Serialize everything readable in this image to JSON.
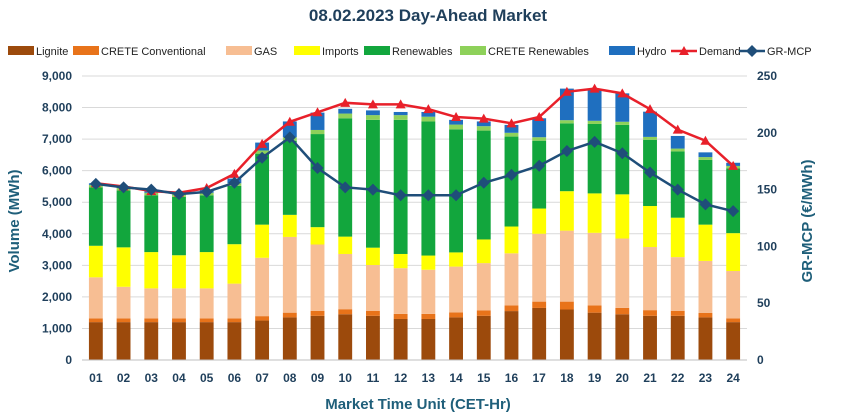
{
  "chart_data": {
    "type": "bar",
    "title": "08.02.2023  Day-Ahead Market",
    "xlabel": "Market Time Unit (CET-Hr)",
    "ylabel": "Volume (MWh)",
    "y2label": "GR-MCP (€/MWh)",
    "ylim": [
      0,
      9000
    ],
    "y2lim": [
      0,
      250
    ],
    "yticks": [
      "0",
      "1,000",
      "2,000",
      "3,000",
      "4,000",
      "5,000",
      "6,000",
      "7,000",
      "8,000",
      "9,000"
    ],
    "y2ticks": [
      "0",
      "50",
      "100",
      "150",
      "200",
      "250"
    ],
    "categories": [
      "01",
      "02",
      "03",
      "04",
      "05",
      "06",
      "07",
      "08",
      "09",
      "10",
      "11",
      "12",
      "13",
      "14",
      "15",
      "16",
      "17",
      "18",
      "19",
      "20",
      "21",
      "22",
      "23",
      "24"
    ],
    "series": [
      {
        "name": "Lignite",
        "kind": "bar",
        "color": "#9c4a0c",
        "values": [
          1200,
          1200,
          1200,
          1200,
          1200,
          1200,
          1250,
          1350,
          1400,
          1450,
          1400,
          1300,
          1300,
          1350,
          1400,
          1550,
          1650,
          1600,
          1500,
          1450,
          1400,
          1400,
          1350,
          1200
        ]
      },
      {
        "name": "CRETE Conventional",
        "kind": "bar",
        "color": "#e8731a",
        "values": [
          120,
          120,
          120,
          120,
          120,
          120,
          140,
          150,
          160,
          160,
          160,
          160,
          160,
          160,
          170,
          180,
          200,
          250,
          230,
          200,
          180,
          160,
          140,
          120
        ]
      },
      {
        "name": "GAS",
        "kind": "bar",
        "color": "#f7be93",
        "values": [
          1300,
          1000,
          950,
          950,
          950,
          1100,
          1850,
          2400,
          2100,
          1750,
          1450,
          1450,
          1400,
          1450,
          1500,
          1650,
          2150,
          2250,
          2300,
          2200,
          2000,
          1700,
          1650,
          1500
        ]
      },
      {
        "name": "Imports",
        "kind": "bar",
        "color": "#ffff00",
        "values": [
          1000,
          1250,
          1150,
          1050,
          1150,
          1250,
          1050,
          700,
          550,
          550,
          550,
          450,
          450,
          450,
          750,
          850,
          800,
          1250,
          1250,
          1400,
          1300,
          1250,
          1150,
          1200
        ]
      },
      {
        "name": "Renewables",
        "kind": "bar",
        "color": "#12a63d",
        "values": [
          1850,
          1800,
          1800,
          1850,
          1800,
          1850,
          2250,
          2350,
          2950,
          3750,
          4050,
          4250,
          4250,
          3900,
          3450,
          2850,
          2150,
          2150,
          2200,
          2200,
          2100,
          2100,
          2050,
          2050
        ]
      },
      {
        "name": "CRETE Renewables",
        "kind": "bar",
        "color": "#8ed15a",
        "values": [
          80,
          80,
          80,
          80,
          80,
          80,
          100,
          110,
          130,
          150,
          150,
          150,
          150,
          150,
          140,
          120,
          110,
          100,
          100,
          100,
          90,
          90,
          90,
          80
        ]
      },
      {
        "name": "Hydro",
        "kind": "bar",
        "color": "#1f6fbf",
        "values": [
          50,
          50,
          50,
          50,
          100,
          150,
          250,
          500,
          550,
          150,
          150,
          100,
          150,
          150,
          150,
          250,
          600,
          1000,
          1000,
          900,
          800,
          400,
          150,
          100
        ]
      },
      {
        "name": "Demand",
        "kind": "line",
        "axis": "left",
        "color": "#e8202a",
        "marker": "triangle",
        "values": [
          5600,
          5500,
          5350,
          5300,
          5450,
          5900,
          6850,
          7550,
          7850,
          8150,
          8100,
          8100,
          7950,
          7700,
          7650,
          7500,
          7700,
          8500,
          8600,
          8450,
          7950,
          7300,
          6950,
          6150
        ]
      },
      {
        "name": "GR-MCP",
        "kind": "line",
        "axis": "right",
        "color": "#1f4e79",
        "marker": "diamond",
        "values": [
          155,
          152,
          150,
          146,
          148,
          156,
          178,
          196,
          169,
          152,
          150,
          145,
          145,
          145,
          156,
          163,
          171,
          184,
          192,
          182,
          165,
          150,
          137,
          131
        ]
      }
    ],
    "legend_position": "top"
  }
}
